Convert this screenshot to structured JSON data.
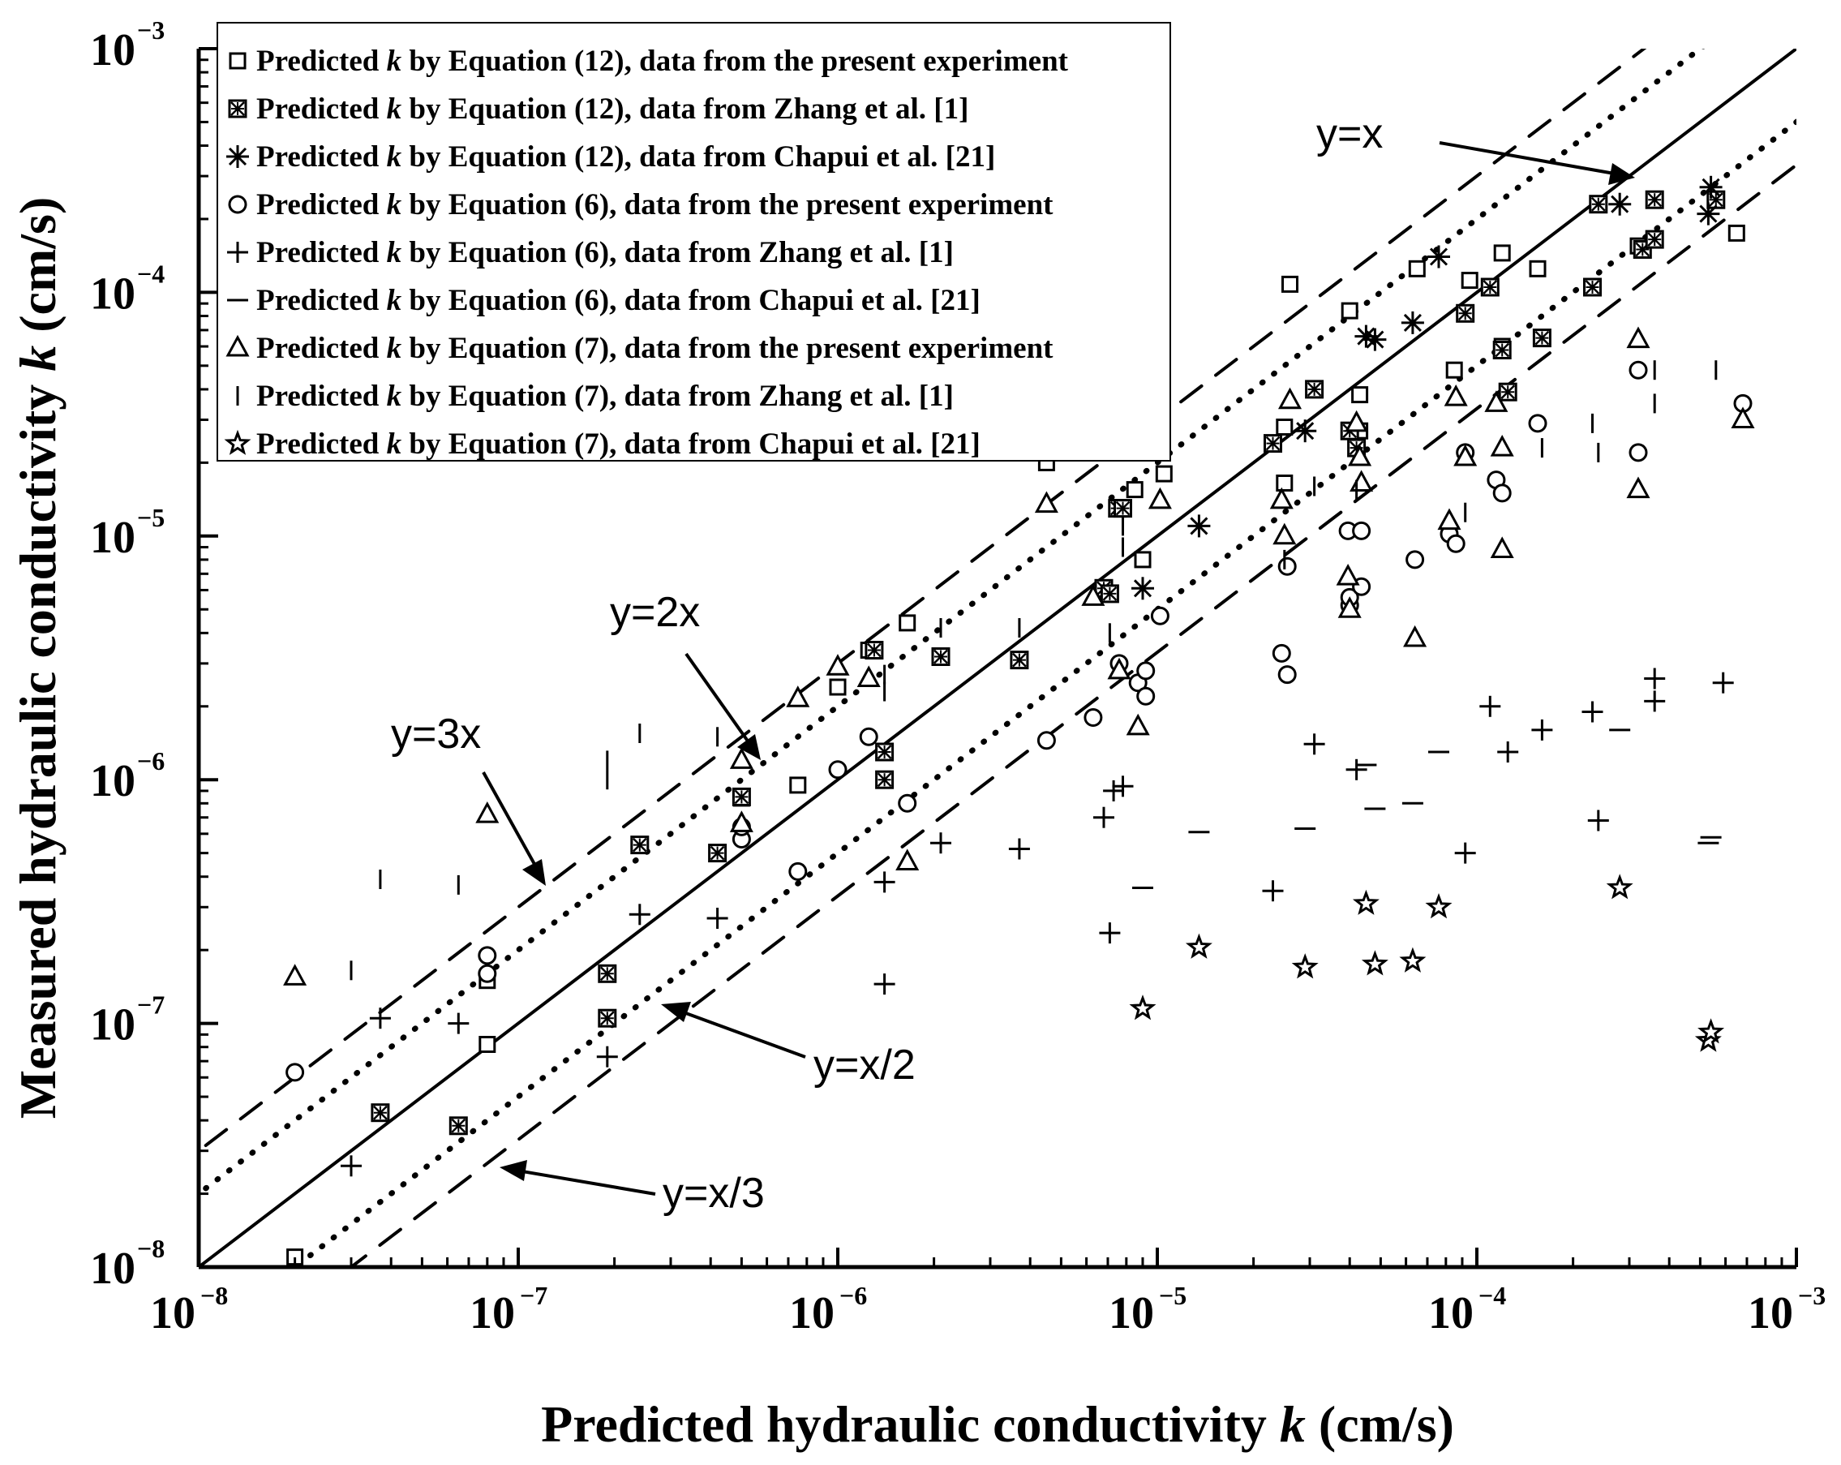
{
  "chart_data": {
    "type": "scatter",
    "xlabel": "Predicted hydraulic conductivity k (cm/s)",
    "ylabel": "Measured hydraulic conductivity k (cm/s)",
    "xscale": "log",
    "yscale": "log",
    "xlim": [
      1e-08,
      0.001
    ],
    "ylim": [
      1e-08,
      0.001
    ],
    "tick_exponents": [
      -8,
      -7,
      -6,
      -5,
      -4,
      -3
    ],
    "tick_base": "10",
    "legend_position": "top-left",
    "reference_lines": [
      {
        "name": "y=x",
        "factor": 1,
        "style": "solid",
        "label": "y=x"
      },
      {
        "name": "y=2x",
        "factor": 2,
        "style": "dotted",
        "label": "y=2x"
      },
      {
        "name": "y=3x",
        "factor": 3,
        "style": "dashed",
        "label": "y=3x"
      },
      {
        "name": "y=x/2",
        "factor": 0.5,
        "style": "dotted",
        "label": "y=x/2"
      },
      {
        "name": "y=x/3",
        "factor": 0.3333,
        "style": "dashed",
        "label": "y=x/3"
      }
    ],
    "series": [
      {
        "name": "eq12-present",
        "label": "Predicted k by Equation (12), data from the present experiment",
        "marker": "square",
        "points": [
          [
            2e-08,
            1.1e-08
          ],
          [
            8e-08,
            8.2e-08
          ],
          [
            8e-08,
            1.5e-07
          ],
          [
            5e-07,
            8.4e-07
          ],
          [
            7.5e-07,
            9.5e-07
          ],
          [
            1e-06,
            2.4e-06
          ],
          [
            1.25e-06,
            3.4e-06
          ],
          [
            1.65e-06,
            4.4e-06
          ],
          [
            4.5e-06,
            2e-05
          ],
          [
            8.5e-06,
            1.55e-05
          ],
          [
            9e-06,
            8e-06
          ],
          [
            1.05e-05,
            1.8e-05
          ],
          [
            2.5e-05,
            1.65e-05
          ],
          [
            2.5e-05,
            2.8e-05
          ],
          [
            2.6e-05,
            0.000108
          ],
          [
            4e-05,
            8.4e-05
          ],
          [
            4.3e-05,
            3.8e-05
          ],
          [
            4.3e-05,
            2.7e-05
          ],
          [
            6.5e-05,
            0.000125
          ],
          [
            8.5e-05,
            4.8e-05
          ],
          [
            9.5e-05,
            0.000112
          ],
          [
            0.00012,
            0.000145
          ],
          [
            0.00012,
            6e-05
          ],
          [
            0.000155,
            0.000125
          ],
          [
            0.00032,
            0.000155
          ],
          [
            0.00065,
            0.000175
          ]
        ]
      },
      {
        "name": "eq12-zhang",
        "label": "Predicted k by Equation (12), data from Zhang et al. [1]",
        "marker": "square-x",
        "points": [
          [
            3.7e-08,
            4.3e-08
          ],
          [
            6.5e-08,
            3.8e-08
          ],
          [
            1.9e-07,
            1.05e-07
          ],
          [
            1.9e-07,
            1.6e-07
          ],
          [
            2.4e-07,
            5.4e-07
          ],
          [
            4.2e-07,
            5e-07
          ],
          [
            5e-07,
            8.5e-07
          ],
          [
            1.4e-06,
            1e-06
          ],
          [
            1.4e-06,
            1.3e-06
          ],
          [
            1.3e-06,
            3.4e-06
          ],
          [
            2.1e-06,
            3.2e-06
          ],
          [
            3.7e-06,
            3.1e-06
          ],
          [
            6.8e-06,
            6.1e-06
          ],
          [
            7.1e-06,
            5.8e-06
          ],
          [
            7.5e-06,
            1.3e-05
          ],
          [
            7.8e-06,
            1.3e-05
          ],
          [
            2.3e-05,
            2.4e-05
          ],
          [
            3.1e-05,
            4e-05
          ],
          [
            4e-05,
            2.7e-05
          ],
          [
            4.2e-05,
            2.3e-05
          ],
          [
            9.2e-05,
            8.2e-05
          ],
          [
            0.00011,
            0.000105
          ],
          [
            0.00012,
            5.8e-05
          ],
          [
            0.000125,
            3.9e-05
          ],
          [
            0.00016,
            6.5e-05
          ],
          [
            0.00023,
            0.000105
          ],
          [
            0.00024,
            0.00023
          ],
          [
            0.00033,
            0.00015
          ],
          [
            0.00036,
            0.000165
          ],
          [
            0.00036,
            0.00024
          ],
          [
            0.00056,
            0.00024
          ]
        ]
      },
      {
        "name": "eq12-chapui",
        "label": "Predicted k by Equation (12), data from Chapui et al. [21]",
        "marker": "asterisk",
        "points": [
          [
            9e-06,
            6.1e-06
          ],
          [
            1.35e-05,
            1.1e-05
          ],
          [
            2.9e-05,
            2.7e-05
          ],
          [
            4.5e-05,
            6.6e-05
          ],
          [
            4.8e-05,
            6.4e-05
          ],
          [
            6.3e-05,
            7.5e-05
          ],
          [
            7.6e-05,
            0.00014
          ],
          [
            0.00028,
            0.00023
          ],
          [
            0.00053,
            0.00021
          ],
          [
            0.00054,
            0.00027
          ]
        ]
      },
      {
        "name": "eq6-present",
        "label": "Predicted k by Equation (6), data from the present experiment",
        "marker": "circle",
        "points": [
          [
            2e-08,
            6.3e-08
          ],
          [
            8e-08,
            1.6e-07
          ],
          [
            8e-08,
            1.9e-07
          ],
          [
            5e-07,
            5.7e-07
          ],
          [
            5e-07,
            6.4e-07
          ],
          [
            7.5e-07,
            4.2e-07
          ],
          [
            1e-06,
            1.1e-06
          ],
          [
            1.25e-06,
            1.5e-06
          ],
          [
            1.65e-06,
            8e-07
          ],
          [
            4.5e-06,
            1.45e-06
          ],
          [
            6.3e-06,
            1.8e-06
          ],
          [
            7.6e-06,
            3e-06
          ],
          [
            8.7e-06,
            2.5e-06
          ],
          [
            9.2e-06,
            2.2e-06
          ],
          [
            9.2e-06,
            2.8e-06
          ],
          [
            1.02e-05,
            4.7e-06
          ],
          [
            2.45e-05,
            3.3e-06
          ],
          [
            2.55e-05,
            2.7e-06
          ],
          [
            2.55e-05,
            7.5e-06
          ],
          [
            3.95e-05,
            1.05e-05
          ],
          [
            4e-05,
            5.2e-06
          ],
          [
            4e-05,
            5.6e-06
          ],
          [
            4.35e-05,
            1.05e-05
          ],
          [
            4.35e-05,
            6.2e-06
          ],
          [
            6.4e-05,
            8e-06
          ],
          [
            8.2e-05,
            1.02e-05
          ],
          [
            8.6e-05,
            9.3e-06
          ],
          [
            9.2e-05,
            2.2e-05
          ],
          [
            0.000115,
            1.7e-05
          ],
          [
            0.00012,
            1.5e-05
          ],
          [
            0.000155,
            2.9e-05
          ],
          [
            0.00032,
            4.8e-05
          ],
          [
            0.00032,
            2.2e-05
          ],
          [
            0.00068,
            3.5e-05
          ]
        ]
      },
      {
        "name": "eq6-zhang",
        "label": "Predicted k by Equation (6), data from Zhang et al. [1]",
        "marker": "plus",
        "points": [
          [
            3e-08,
            2.6e-08
          ],
          [
            3.7e-08,
            1.05e-07
          ],
          [
            6.5e-08,
            1e-07
          ],
          [
            1.9e-07,
            7.3e-08
          ],
          [
            2.4e-07,
            2.8e-07
          ],
          [
            4.2e-07,
            2.7e-07
          ],
          [
            1.4e-06,
            1.45e-07
          ],
          [
            1.4e-06,
            3.8e-07
          ],
          [
            2.1e-06,
            5.5e-07
          ],
          [
            3.7e-06,
            5.2e-07
          ],
          [
            6.8e-06,
            7e-07
          ],
          [
            7.1e-06,
            2.35e-07
          ],
          [
            7.3e-06,
            9e-07
          ],
          [
            7.8e-06,
            9.4e-07
          ],
          [
            2.3e-05,
            3.5e-07
          ],
          [
            3.1e-05,
            1.4e-06
          ],
          [
            4.2e-05,
            1.1e-06
          ],
          [
            9.2e-05,
            5e-07
          ],
          [
            0.00011,
            2e-06
          ],
          [
            0.000125,
            1.3e-06
          ],
          [
            0.00016,
            1.6e-06
          ],
          [
            0.00023,
            1.9e-06
          ],
          [
            0.00024,
            6.8e-07
          ],
          [
            0.00036,
            2.1e-06
          ],
          [
            0.00036,
            2.6e-06
          ],
          [
            0.00059,
            2.5e-06
          ]
        ]
      },
      {
        "name": "eq6-chapui",
        "label": "Predicted k by Equation (6), data from Chapui et al. [21]",
        "marker": "dash",
        "points": [
          [
            9e-06,
            3.6e-07
          ],
          [
            1.35e-05,
            6.1e-07
          ],
          [
            2.9e-05,
            6.3e-07
          ],
          [
            4.5e-05,
            1.15e-06
          ],
          [
            4.8e-05,
            7.6e-07
          ],
          [
            6.3e-05,
            8e-07
          ],
          [
            7.6e-05,
            1.3e-06
          ],
          [
            0.00028,
            1.6e-06
          ],
          [
            0.00053,
            5.5e-07
          ],
          [
            0.00054,
            5.8e-07
          ]
        ]
      },
      {
        "name": "eq7-present",
        "label": "Predicted k by Equation (7), data from the present experiment",
        "marker": "triangle",
        "points": [
          [
            2e-08,
            1.55e-07
          ],
          [
            8e-08,
            7.2e-07
          ],
          [
            5e-07,
            1.2e-06
          ],
          [
            5e-07,
            6.6e-07
          ],
          [
            7.5e-07,
            2.15e-06
          ],
          [
            1e-06,
            2.9e-06
          ],
          [
            1.25e-06,
            2.6e-06
          ],
          [
            1.65e-06,
            4.6e-07
          ],
          [
            4.5e-06,
            1.35e-05
          ],
          [
            6.3e-06,
            5.6e-06
          ],
          [
            7.6e-06,
            2.8e-06
          ],
          [
            8.7e-06,
            1.65e-06
          ],
          [
            1.02e-05,
            1.4e-05
          ],
          [
            2.45e-05,
            1.4e-05
          ],
          [
            2.5e-05,
            1e-05
          ],
          [
            2.6e-05,
            3.6e-05
          ],
          [
            3.95e-05,
            6.8e-06
          ],
          [
            4e-05,
            5e-06
          ],
          [
            4.2e-05,
            2.9e-05
          ],
          [
            4.3e-05,
            2.1e-05
          ],
          [
            4.35e-05,
            1.65e-05
          ],
          [
            6.4e-05,
            3.8e-06
          ],
          [
            8.2e-05,
            1.15e-05
          ],
          [
            8.6e-05,
            3.7e-05
          ],
          [
            9.2e-05,
            2.1e-05
          ],
          [
            0.000115,
            3.5e-05
          ],
          [
            0.00012,
            2.3e-05
          ],
          [
            0.00012,
            8.8e-06
          ],
          [
            0.00032,
            6.4e-05
          ],
          [
            0.00032,
            1.55e-05
          ],
          [
            0.00068,
            3e-05
          ]
        ]
      },
      {
        "name": "eq7-zhang",
        "label": "Predicted k by Equation (7), data from Zhang et al. [1]",
        "marker": "bar",
        "points": [
          [
            3e-08,
            1.65e-07
          ],
          [
            3.7e-08,
            3.9e-07
          ],
          [
            6.5e-08,
            3.7e-07
          ],
          [
            1.9e-07,
            1e-06
          ],
          [
            1.9e-07,
            1.2e-06
          ],
          [
            2.4e-07,
            1.55e-06
          ],
          [
            4.2e-07,
            1.5e-06
          ],
          [
            1.4e-06,
            2.3e-06
          ],
          [
            1.4e-06,
            2.7e-06
          ],
          [
            2.1e-06,
            4.2e-06
          ],
          [
            3.7e-06,
            4.2e-06
          ],
          [
            7.1e-06,
            4e-06
          ],
          [
            7.8e-06,
            9e-06
          ],
          [
            7.8e-06,
            1.1e-05
          ],
          [
            2.5e-05,
            8e-06
          ],
          [
            3.1e-05,
            1.6e-05
          ],
          [
            4.2e-05,
            1.55e-05
          ],
          [
            9.2e-05,
            1.25e-05
          ],
          [
            0.00016,
            2.3e-05
          ],
          [
            0.00023,
            2.9e-05
          ],
          [
            0.00024,
            2.2e-05
          ],
          [
            0.00036,
            3.5e-05
          ],
          [
            0.00036,
            4.8e-05
          ],
          [
            0.00056,
            4.8e-05
          ]
        ]
      },
      {
        "name": "eq7-chapui",
        "label": "Predicted k by Equation (7), data from Chapui et al. [21]",
        "marker": "star",
        "points": [
          [
            9e-06,
            1.15e-07
          ],
          [
            1.35e-05,
            2.05e-07
          ],
          [
            2.9e-05,
            1.7e-07
          ],
          [
            4.5e-05,
            3.1e-07
          ],
          [
            4.8e-05,
            1.75e-07
          ],
          [
            6.3e-05,
            1.8e-07
          ],
          [
            7.6e-05,
            3e-07
          ],
          [
            0.00028,
            3.6e-07
          ],
          [
            0.00053,
            8.5e-08
          ],
          [
            0.00054,
            9.2e-08
          ]
        ]
      }
    ]
  }
}
